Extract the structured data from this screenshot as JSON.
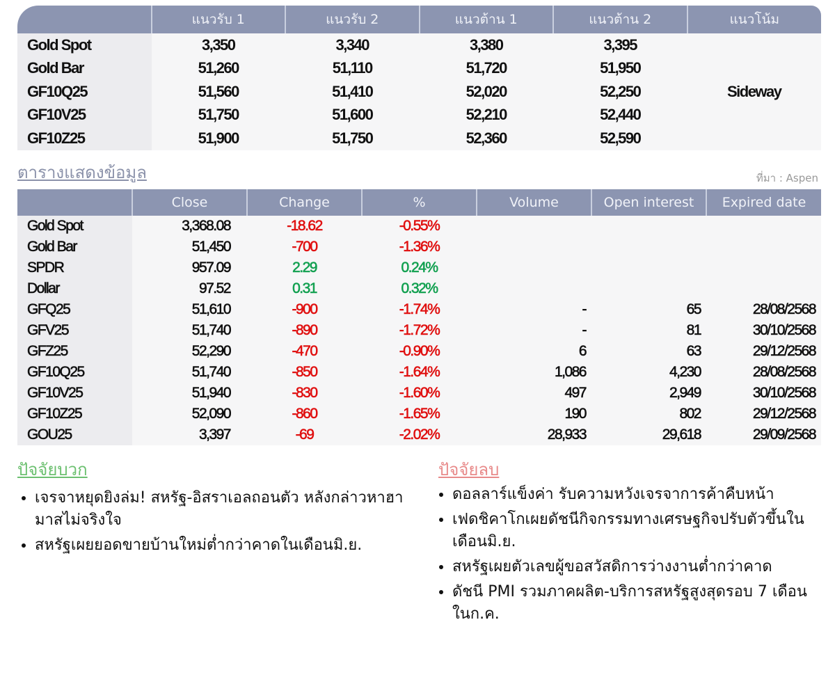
{
  "levels": {
    "headers": [
      "",
      "แนวรับ 1",
      "แนวรับ 2",
      "แนวต้าน 1",
      "แนวต้าน 2",
      "แนวโน้ม"
    ],
    "rows": [
      [
        "Gold Spot",
        "3,350",
        "3,340",
        "3,380",
        "3,395"
      ],
      [
        "Gold Bar",
        "51,260",
        "51,110",
        "51,720",
        "51,950"
      ],
      [
        "GF10Q25",
        "51,560",
        "51,410",
        "52,020",
        "52,250"
      ],
      [
        "GF10V25",
        "51,750",
        "51,600",
        "52,210",
        "52,440"
      ],
      [
        "GF10Z25",
        "51,900",
        "51,750",
        "52,360",
        "52,590"
      ]
    ],
    "trend": "Sideway"
  },
  "section_title": "ตารางแสดงข้อมูล",
  "source": "ที่มา : Aspen",
  "data": {
    "headers": [
      "",
      "Close",
      "Change",
      "%",
      "Volume",
      "Open interest",
      "Expired date"
    ],
    "rows": [
      [
        "Gold Spot",
        "3,368.08",
        "-18.62",
        "-0.55%",
        "",
        "",
        ""
      ],
      [
        "Gold Bar",
        "51,450",
        "-700",
        "-1.36%",
        "",
        "",
        ""
      ],
      [
        "SPDR",
        "957.09",
        "2.29",
        "0.24%",
        "",
        "",
        ""
      ],
      [
        "Dollar",
        "97.52",
        "0.31",
        "0.32%",
        "",
        "",
        ""
      ],
      [
        "GFQ25",
        "51,610",
        "-900",
        "-1.74%",
        "-",
        "65",
        "28/08/2568"
      ],
      [
        "GFV25",
        "51,740",
        "-890",
        "-1.72%",
        "-",
        "81",
        "30/10/2568"
      ],
      [
        "GFZ25",
        "52,290",
        "-470",
        "-0.90%",
        "6",
        "63",
        "29/12/2568"
      ],
      [
        "GF10Q25",
        "51,740",
        "-850",
        "-1.64%",
        "1,086",
        "4,230",
        "28/08/2568"
      ],
      [
        "GF10V25",
        "51,940",
        "-830",
        "-1.60%",
        "497",
        "2,949",
        "30/10/2568"
      ],
      [
        "GF10Z25",
        "52,090",
        "-860",
        "-1.65%",
        "190",
        "802",
        "29/12/2568"
      ],
      [
        "GOU25",
        "3,397",
        "-69",
        "-2.02%",
        "28,933",
        "29,618",
        "29/09/2568"
      ]
    ]
  },
  "positive": {
    "title": "ปัจจัยบวก",
    "items": [
      "เจรจาหยุดยิงล่ม! สหรัฐ-อิสราเอลถอนตัว หลังกล่าวหาฮามาสไม่จริงใจ",
      "สหรัฐเผยยอดขายบ้านใหม่ต่ำกว่าคาดในเดือนมิ.ย."
    ]
  },
  "negative": {
    "title": "ปัจจัยลบ",
    "items": [
      "ดอลลาร์แข็งค่า รับความหวังเจรจาการค้าคืบหน้า",
      "เฟดชิคาโกเผยดัชนีกิจกรรมทางเศรษฐกิจปรับตัวขึ้นในเดือนมิ.ย.",
      "สหรัฐเผยตัวเลขผู้ขอสวัสดิการว่างงานต่ำกว่าคาด",
      "ดัชนี PMI รวมภาคผลิต-บริการสหรัฐสูงสุดรอบ 7 เดือนในก.ค."
    ]
  },
  "colors": {
    "header": "#8c95b1",
    "negative": "#e01010",
    "positive": "#12a050",
    "positive_title": "#6cc070",
    "negative_title": "#e88a8a"
  }
}
